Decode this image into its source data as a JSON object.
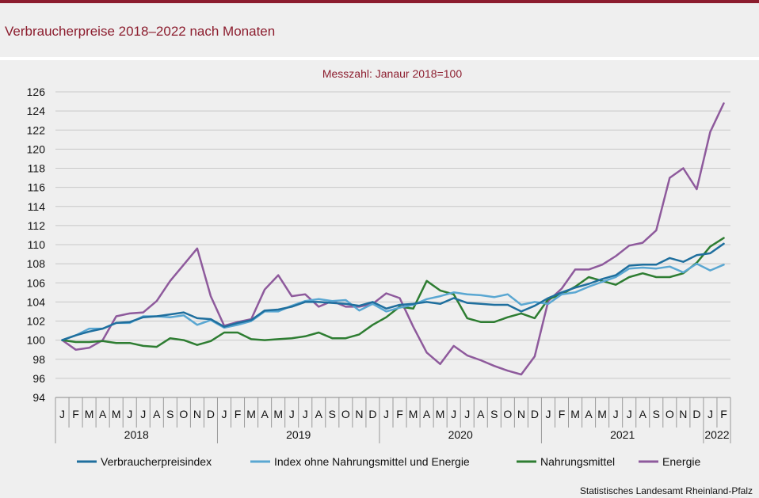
{
  "title": "Verbraucherpreise 2018–2022 nach Monaten",
  "subtitle": "Messzahl: Janaur 2018=100",
  "source": "Statistisches Landesamt Rheinland-Pfalz",
  "colors": {
    "brand": "#8c1d2e",
    "background": "#efefef",
    "series": [
      "#1f6f9e",
      "#5aa7d2",
      "#2e7d32",
      "#8e5a9c"
    ]
  },
  "chart_data": {
    "type": "line",
    "title": "Verbraucherpreise 2018–2022 nach Monaten",
    "subtitle": "Messzahl: Janaur 2018=100",
    "ylim": [
      94,
      126
    ],
    "yticks": [
      94,
      96,
      98,
      100,
      102,
      104,
      106,
      108,
      110,
      112,
      114,
      116,
      118,
      120,
      122,
      124,
      126
    ],
    "grid": true,
    "legend_position": "bottom",
    "month_labels": [
      "J",
      "F",
      "M",
      "A",
      "M",
      "J",
      "J",
      "A",
      "S",
      "O",
      "N",
      "D",
      "J",
      "F",
      "M",
      "A",
      "M",
      "J",
      "J",
      "A",
      "S",
      "O",
      "N",
      "D",
      "J",
      "F",
      "M",
      "A",
      "M",
      "J",
      "J",
      "A",
      "S",
      "O",
      "N",
      "D",
      "J",
      "F",
      "M",
      "A",
      "M",
      "J",
      "J",
      "A",
      "S",
      "O",
      "N",
      "D",
      "J",
      "F"
    ],
    "year_labels": [
      "2018",
      "2019",
      "2020",
      "2021",
      "2022"
    ],
    "year_spans": [
      12,
      12,
      12,
      12,
      2
    ],
    "series": [
      {
        "name": "Verbraucherpreisindex",
        "values": [
          100.0,
          100.5,
          100.9,
          101.2,
          101.8,
          101.9,
          102.4,
          102.5,
          102.7,
          102.9,
          102.3,
          102.2,
          101.4,
          101.8,
          102.1,
          103.1,
          103.2,
          103.5,
          104.0,
          104.0,
          103.9,
          103.8,
          103.6,
          104.0,
          103.3,
          103.7,
          103.8,
          104.0,
          103.8,
          104.4,
          103.9,
          103.8,
          103.7,
          103.7,
          103.0,
          103.6,
          104.4,
          105.0,
          105.5,
          105.9,
          106.4,
          106.8,
          107.8,
          107.9,
          107.9,
          108.6,
          108.2,
          108.9,
          109.1,
          110.1
        ]
      },
      {
        "name": "Index ohne Nahrungsmittel und Energie",
        "values": [
          100.0,
          100.5,
          101.2,
          101.2,
          101.8,
          101.8,
          102.5,
          102.5,
          102.4,
          102.6,
          101.6,
          102.1,
          101.3,
          101.6,
          102.0,
          103.0,
          103.0,
          103.6,
          104.1,
          104.3,
          104.1,
          104.2,
          103.1,
          103.8,
          103.0,
          103.4,
          103.7,
          104.3,
          104.6,
          105.0,
          104.8,
          104.7,
          104.5,
          104.8,
          103.7,
          104.0,
          103.8,
          104.8,
          105.0,
          105.6,
          106.1,
          106.6,
          107.5,
          107.6,
          107.5,
          107.7,
          107.1,
          108.0,
          107.3,
          107.9
        ]
      },
      {
        "name": "Nahrungsmittel",
        "values": [
          100.0,
          99.8,
          99.8,
          99.9,
          99.7,
          99.7,
          99.4,
          99.3,
          100.2,
          100.0,
          99.5,
          99.9,
          100.8,
          100.8,
          100.1,
          100.0,
          100.1,
          100.2,
          100.4,
          100.8,
          100.2,
          100.2,
          100.6,
          101.6,
          102.4,
          103.5,
          103.3,
          106.2,
          105.2,
          104.8,
          102.3,
          101.9,
          101.9,
          102.4,
          102.8,
          102.3,
          104.3,
          104.8,
          105.6,
          106.6,
          106.2,
          105.8,
          106.6,
          107.0,
          106.6,
          106.6,
          107.0,
          108.1,
          109.8,
          110.7
        ]
      },
      {
        "name": "Energie",
        "values": [
          100.0,
          99.0,
          99.2,
          100.0,
          102.5,
          102.8,
          102.9,
          104.1,
          106.2,
          107.9,
          109.6,
          104.6,
          101.5,
          101.9,
          102.2,
          105.3,
          106.8,
          104.6,
          104.8,
          103.5,
          104.1,
          103.5,
          103.5,
          103.8,
          104.9,
          104.4,
          101.4,
          98.7,
          97.5,
          99.4,
          98.4,
          97.9,
          97.3,
          96.8,
          96.4,
          98.3,
          104.1,
          105.4,
          107.4,
          107.4,
          107.9,
          108.8,
          109.9,
          110.2,
          111.5,
          117.0,
          118.0,
          115.8,
          121.8,
          124.8
        ]
      }
    ]
  }
}
